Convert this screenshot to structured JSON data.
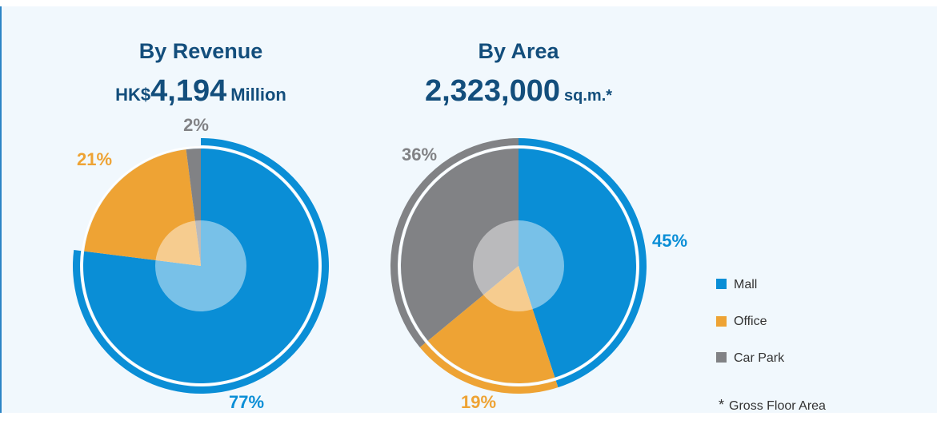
{
  "colors": {
    "mall": "#0a8ed6",
    "office": "#eea334",
    "car_park": "#818285",
    "title": "#134e7c"
  },
  "chart_data": [
    {
      "type": "pie",
      "title": "By Revenue",
      "subtitle": {
        "prefix": "HK$",
        "value": "4,194",
        "unit": "Million"
      },
      "categories": [
        "Mall",
        "Office",
        "Car Park"
      ],
      "values": [
        77,
        21,
        2
      ],
      "labels": [
        "77%",
        "21%",
        "2%"
      ]
    },
    {
      "type": "pie",
      "title": "By Area",
      "subtitle": {
        "prefix": "",
        "value": "2,323,000",
        "unit": "sq.m.*"
      },
      "categories": [
        "Mall",
        "Office",
        "Car Park"
      ],
      "values": [
        45,
        19,
        36
      ],
      "labels": [
        "45%",
        "19%",
        "36%"
      ]
    }
  ],
  "legend": {
    "placement": "right",
    "items": [
      {
        "label": "Mall",
        "color": "#0a8ed6"
      },
      {
        "label": "Office",
        "color": "#eea334"
      },
      {
        "label": "Car Park",
        "color": "#818285"
      }
    ]
  },
  "footnote": {
    "mark": "*",
    "text": "Gross Floor Area"
  }
}
